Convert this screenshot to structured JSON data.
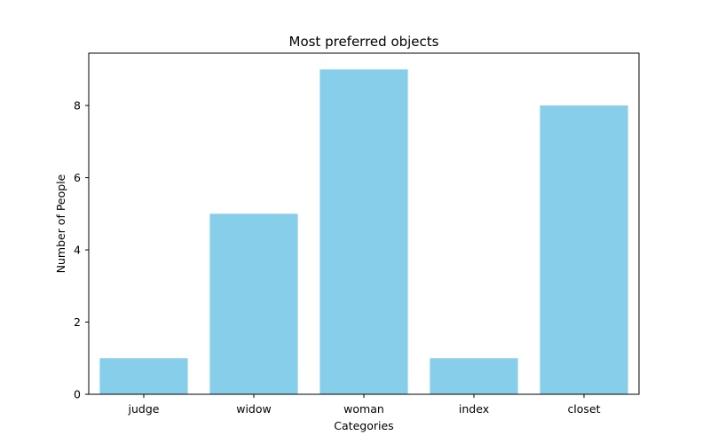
{
  "chart_data": {
    "type": "bar",
    "title": "Most preferred objects",
    "xlabel": "Categories",
    "ylabel": "Number of People",
    "categories": [
      "judge",
      "widow",
      "woman",
      "index",
      "closet"
    ],
    "values": [
      1,
      5,
      9,
      1,
      8
    ],
    "ylim": [
      0,
      9.45
    ],
    "yticks": [
      0,
      2,
      4,
      6,
      8
    ],
    "grid": false,
    "legend": "none",
    "bar_color": "#87ceeb"
  }
}
